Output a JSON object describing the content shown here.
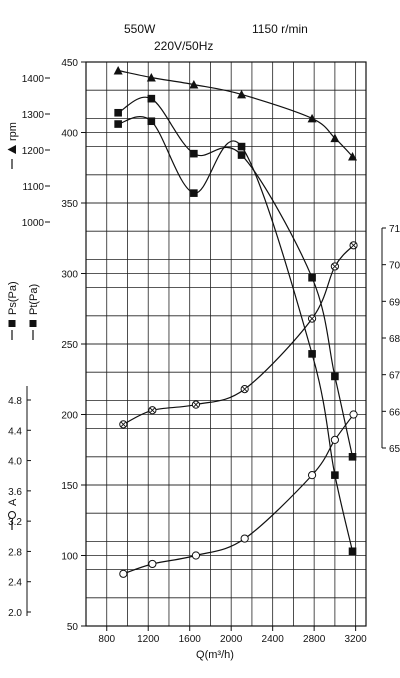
{
  "header": {
    "power": "550W",
    "voltage": "220V/50Hz",
    "speed": "1150 r/min"
  },
  "chart_data": {
    "type": "line",
    "title": "",
    "grid": true,
    "xlabel": "Q(m³/h)",
    "xlim": [
      600,
      3300
    ],
    "xticks": [
      "800",
      "1200",
      "1600",
      "2000",
      "2400",
      "2800",
      "3200"
    ],
    "xtick_values": [
      800,
      1200,
      1600,
      2000,
      2400,
      2800,
      3200
    ],
    "axes": {
      "pressure": {
        "label": "Ps(Pa)",
        "label2": "Pt(Pa)",
        "range": [
          50,
          450
        ],
        "ticks": [
          "450",
          "400",
          "350",
          "300",
          "250",
          "200",
          "150",
          "100",
          "50"
        ],
        "tick_values": [
          450,
          400,
          350,
          300,
          250,
          200,
          150,
          100,
          50
        ]
      },
      "rpm": {
        "label": "rpm",
        "range": [
          1000,
          1400
        ],
        "ticks": [
          "1400",
          "1300",
          "1200",
          "1100",
          "1000"
        ],
        "tick_values": [
          1400,
          1300,
          1200,
          1100,
          1000
        ]
      },
      "current": {
        "label": "A",
        "range": [
          2.0,
          4.8
        ],
        "ticks": [
          "4.8",
          "4.4",
          "4.0",
          "3.6",
          "3.2",
          "2.8",
          "2.4",
          "2.0"
        ],
        "tick_values": [
          4.8,
          4.4,
          4.0,
          3.6,
          3.2,
          2.8,
          2.4,
          2.0
        ]
      },
      "right": {
        "ticks": [
          "71",
          "70",
          "69",
          "68",
          "67",
          "66",
          "65"
        ],
        "tick_values": [
          71,
          70,
          69,
          68,
          67,
          66,
          65
        ]
      }
    },
    "series": [
      {
        "name": "rpm",
        "marker": "triangle",
        "axis": "pressure",
        "x": [
          910,
          1230,
          1640,
          2100,
          2780,
          3000,
          3170
        ],
        "y": [
          444,
          439,
          434,
          427,
          410,
          396,
          383
        ]
      },
      {
        "name": "Pt(Pa)",
        "marker": "square",
        "axis": "pressure",
        "x": [
          910,
          1230,
          1640,
          2100,
          2780,
          3000,
          3170
        ],
        "y": [
          414,
          424,
          385,
          384,
          297,
          227,
          170
        ]
      },
      {
        "name": "Ps(Pa)",
        "marker": "square",
        "axis": "pressure",
        "x": [
          910,
          1230,
          1640,
          2100,
          2780,
          3000,
          3170
        ],
        "y": [
          406,
          408,
          357,
          390,
          243,
          157,
          103
        ]
      },
      {
        "marker": "circle-x",
        "axis": "pressure",
        "x": [
          960,
          1240,
          1660,
          2130,
          2780,
          3000,
          3180
        ],
        "y": [
          193,
          203,
          207,
          218,
          268,
          305,
          320
        ]
      },
      {
        "name": "A",
        "marker": "circle",
        "axis": "pressure",
        "x": [
          960,
          1240,
          1660,
          2130,
          2780,
          3000,
          3180
        ],
        "y": [
          87,
          94,
          100,
          112,
          157,
          182,
          200
        ]
      }
    ]
  }
}
